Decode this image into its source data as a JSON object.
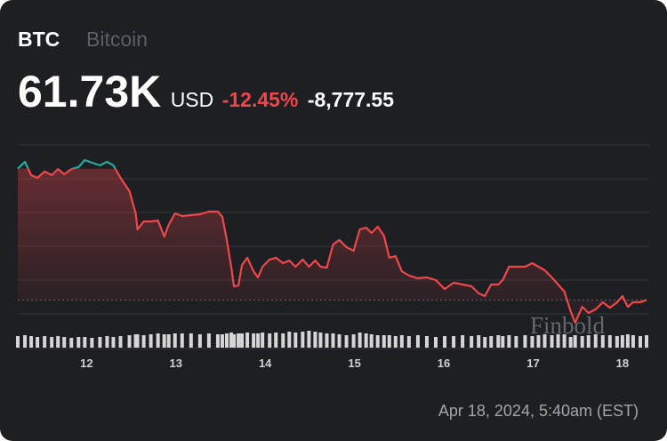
{
  "header": {
    "symbol": "BTC",
    "name": "Bitcoin",
    "price": "61.73K",
    "currency": "USD",
    "change_percent": "-12.45%",
    "change": "-8,777.55"
  },
  "timestamp": "Apr 18, 2024, 5:40am (EST)",
  "watermark": "Finbold",
  "chart_data": {
    "type": "line",
    "x": [
      11.23,
      11.31,
      11.38,
      11.45,
      11.53,
      11.61,
      11.68,
      11.75,
      11.83,
      11.91,
      11.98,
      12.06,
      12.15,
      12.23,
      12.3,
      12.38,
      12.48,
      12.55,
      12.57,
      12.64,
      12.72,
      12.8,
      12.87,
      12.92,
      12.99,
      13.07,
      13.17,
      13.27,
      13.37,
      13.47,
      13.52,
      13.57,
      13.62,
      13.65,
      13.7,
      13.74,
      13.8,
      13.87,
      13.92,
      13.97,
      14.05,
      14.12,
      14.2,
      14.27,
      14.34,
      14.42,
      14.49,
      14.56,
      14.62,
      14.69,
      14.76,
      14.83,
      14.91,
      14.99,
      15.06,
      15.13,
      15.19,
      15.26,
      15.33,
      15.39,
      15.46,
      15.53,
      15.61,
      15.71,
      15.81,
      15.91,
      16.01,
      16.11,
      16.21,
      16.31,
      16.39,
      16.46,
      16.53,
      16.61,
      16.66,
      16.73,
      16.81,
      16.91,
      16.99,
      17.06,
      17.13,
      17.21,
      17.28,
      17.35,
      17.42,
      17.47,
      17.55,
      17.62,
      17.7,
      17.78,
      17.86,
      17.94,
      18.0,
      18.06,
      18.12,
      18.2,
      18.27
    ],
    "series": [
      {
        "color": "#f0474b",
        "up_color": "#2aa99a",
        "values": [
          70510,
          70970,
          70080,
          69900,
          70320,
          70080,
          70490,
          70140,
          70490,
          70610,
          71090,
          70910,
          70730,
          70970,
          70730,
          69900,
          69010,
          67520,
          66450,
          66980,
          66980,
          67040,
          65970,
          66750,
          67520,
          67340,
          67400,
          67460,
          67640,
          67640,
          67280,
          65740,
          63950,
          62640,
          62700,
          64070,
          64550,
          63650,
          63240,
          63950,
          64430,
          64550,
          64190,
          64370,
          63950,
          64430,
          63950,
          64370,
          63950,
          63890,
          65440,
          65740,
          65260,
          65020,
          66450,
          66570,
          66210,
          66630,
          66030,
          64550,
          64660,
          63650,
          63360,
          63180,
          63240,
          63060,
          62460,
          62880,
          62760,
          62640,
          62170,
          61990,
          62760,
          62760,
          63060,
          63950,
          63950,
          63950,
          64190,
          63950,
          63710,
          63240,
          62760,
          62290,
          60980,
          60200,
          61270,
          60860,
          61100,
          61570,
          61210,
          61570,
          61990,
          61270,
          61570,
          61570,
          61730
        ]
      },
      {
        "color": "#d6d6d6",
        "axis": "y2",
        "values": [
          13,
          14,
          13,
          12,
          13,
          12,
          13,
          12,
          11,
          12,
          12,
          11,
          12,
          13,
          12,
          13,
          14,
          15,
          15,
          14,
          15,
          16,
          15,
          15,
          16,
          16,
          16,
          15,
          16,
          15,
          15,
          16,
          17,
          15,
          16,
          16,
          17,
          16,
          16,
          17,
          16,
          17,
          16,
          18,
          17,
          18,
          19,
          18,
          17,
          16,
          16,
          15,
          14,
          15,
          17,
          16,
          15,
          14,
          14,
          14,
          13,
          14,
          13,
          14,
          13,
          12,
          13,
          13,
          14,
          13,
          14,
          12,
          13,
          14,
          13,
          14,
          13,
          14,
          13,
          14,
          15,
          14,
          15,
          15,
          12,
          14,
          13,
          14,
          15,
          14,
          14,
          13,
          14,
          15,
          14,
          13,
          14
        ]
      }
    ],
    "xlim": [
      11.23,
      18.27
    ],
    "xticks": [
      12,
      13,
      14,
      15,
      16,
      17,
      18
    ],
    "ylim": [
      58300,
      72100
    ],
    "y2lim": [
      0,
      20
    ]
  }
}
